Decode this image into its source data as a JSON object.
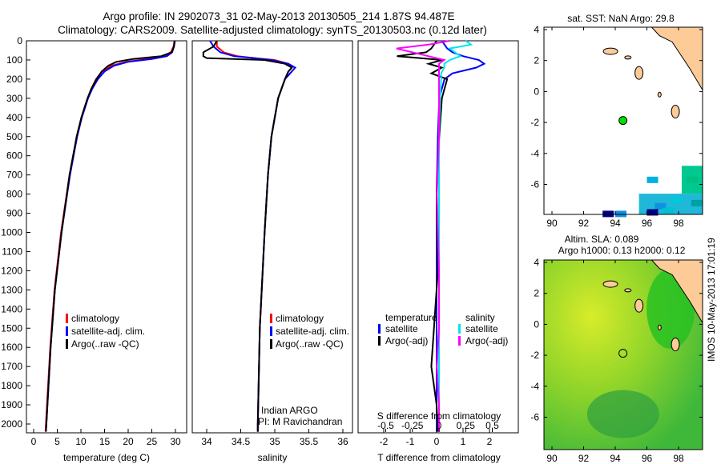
{
  "title_line1": "Argo profile: IN 2902073_31 02-May-2013 20130505_214 1.87S 94.487E",
  "title_line2": "Climatology: CARS2009. Satellite-adjusted climatology: synTS_20130503.nc (0.12d later)",
  "footer_stamp": "IMOS 10-May-2013 17:01:19",
  "colors": {
    "climatology": "#ff0000",
    "satellite": "#0000ff",
    "argo": "#000000",
    "sal_satellite": "#00e5ee",
    "sal_argo": "#ff00ff",
    "land": "#fccb98"
  },
  "chart_data": [
    {
      "type": "line",
      "xlabel": "temperature (deg C)",
      "xlim": [
        -2,
        31
      ],
      "ylim": [
        2050,
        0
      ],
      "xticks": [
        "0",
        "5",
        "10",
        "15",
        "20",
        "25",
        "30"
      ],
      "yticks": [
        "0",
        "100",
        "200",
        "300",
        "400",
        "500",
        "600",
        "700",
        "800",
        "900",
        "1000",
        "1100",
        "1200",
        "1300",
        "1400",
        "1500",
        "1600",
        "1700",
        "1800",
        "1900",
        "2000"
      ],
      "legend": [
        "climatology",
        "satellite-adj. clim.",
        "Argo(..raw -QC)"
      ],
      "depth": [
        0,
        30,
        60,
        80,
        95,
        110,
        130,
        160,
        200,
        250,
        300,
        400,
        500,
        700,
        1000,
        1300,
        1600,
        2000,
        2040
      ],
      "series": [
        {
          "name": "climatology",
          "values": [
            29.8,
            29.6,
            29.0,
            27.5,
            24,
            19.5,
            16.5,
            14.5,
            13.2,
            12.2,
            11.4,
            10.1,
            9.1,
            7.6,
            5.8,
            4.4,
            3.5,
            2.6,
            2.5
          ]
        },
        {
          "name": "satellite-adj. clim.",
          "values": [
            29.9,
            29.7,
            29.3,
            28.2,
            25,
            20,
            17,
            15,
            13.6,
            12.4,
            11.5,
            10.2,
            9.2,
            7.7,
            5.9,
            4.5,
            3.6,
            2.7,
            2.6
          ]
        },
        {
          "name": "Argo(..raw -QC)",
          "values": [
            29.8,
            29.7,
            29.2,
            27.0,
            21,
            17.5,
            15.8,
            14.4,
            13.3,
            12.2,
            11.4,
            10.1,
            9.1,
            7.6,
            5.9,
            4.5,
            3.6,
            2.7,
            2.6
          ]
        }
      ],
      "annotations": []
    },
    {
      "type": "line",
      "xlabel": "salinity",
      "xlim": [
        33.7,
        36.1
      ],
      "ylim": [
        2050,
        0
      ],
      "xticks": [
        "34",
        "34.5",
        "35",
        "35.5",
        "36"
      ],
      "legend": [
        "climatology",
        "satellite-adj. clim.",
        "Argo(..raw -QC)"
      ],
      "depth": [
        0,
        30,
        60,
        80,
        90,
        100,
        120,
        140,
        160,
        200,
        300,
        500,
        700,
        1000,
        1500,
        2000,
        2040
      ],
      "series": [
        {
          "name": "climatology",
          "values": [
            34.15,
            34.15,
            34.25,
            34.45,
            34.7,
            35.0,
            35.2,
            35.25,
            35.2,
            35.15,
            35.05,
            34.95,
            34.9,
            34.85,
            34.78,
            34.75,
            34.75
          ]
        },
        {
          "name": "satellite-adj. clim.",
          "values": [
            34.05,
            34.1,
            34.2,
            34.4,
            34.7,
            34.95,
            35.2,
            35.3,
            35.25,
            35.15,
            35.05,
            34.95,
            34.9,
            34.85,
            34.78,
            34.75,
            34.75
          ]
        },
        {
          "name": "Argo(..raw -QC)",
          "values": [
            34.15,
            34.1,
            33.95,
            33.95,
            34.0,
            34.85,
            35.15,
            35.25,
            35.2,
            35.15,
            35.05,
            34.95,
            34.9,
            34.85,
            34.78,
            34.75,
            34.75
          ]
        }
      ],
      "annotations": [
        "Indian ARGO",
        "PI: M Ravichandran"
      ]
    },
    {
      "type": "line",
      "xlabel": "T difference from climatology",
      "xlabel2": "S difference from climatology",
      "xlim": [
        -2.8,
        2.9
      ],
      "ylim": [
        2050,
        0
      ],
      "xticks": [
        "-2",
        "-1",
        "0",
        "1",
        "2"
      ],
      "xticks2": [
        "-0.5",
        "-0.25",
        "0",
        "0.25",
        "0.5"
      ],
      "legend_titles": [
        "temperature",
        "salinity"
      ],
      "legend": [
        "satellite",
        "Argo(-adj)",
        "satellite",
        "Argo(-adj)"
      ],
      "depth": [
        0,
        20,
        40,
        60,
        80,
        100,
        120,
        140,
        170,
        200,
        300,
        500,
        800,
        1200,
        1500,
        1700,
        1900,
        2040
      ],
      "series": [
        {
          "name": "T satellite",
          "values": [
            0.2,
            0.3,
            0.4,
            0.6,
            1.0,
            1.6,
            1.8,
            1.5,
            0.6,
            0.3,
            0.1,
            0.05,
            0.0,
            0.0,
            0.0,
            0.0,
            0.0,
            0.0
          ]
        },
        {
          "name": "T Argo(-adj)",
          "values": [
            0.0,
            -0.1,
            -0.2,
            -0.4,
            -1.5,
            0.2,
            -0.3,
            0.2,
            -0.2,
            0.4,
            0.2,
            0.1,
            0.0,
            0.05,
            -0.1,
            -0.2,
            0.0,
            0.05
          ]
        },
        {
          "name": "S satellite",
          "values": [
            0.25,
            0.3,
            0.1,
            0.15,
            0.2,
            0.1,
            0.05,
            0.05,
            0.02,
            0.02,
            0.01,
            0.0,
            0.0,
            0.0,
            0.0,
            0.0,
            0.0,
            0.0
          ]
        },
        {
          "name": "S Argo(-adj)",
          "values": [
            0.1,
            -0.1,
            -0.4,
            -0.25,
            -0.1,
            0.05,
            0.0,
            0.0,
            0.0,
            0.0,
            0.0,
            0.0,
            -0.02,
            0.0,
            0.0,
            -0.02,
            0.0,
            0.0
          ]
        }
      ]
    },
    {
      "type": "heatmap",
      "title": "sat. SST: NaN Argo: 29.8",
      "xticks": [
        "90",
        "92",
        "94",
        "96",
        "98"
      ],
      "yticks": [
        "4",
        "2",
        "0",
        "-2",
        "-4",
        "-6"
      ],
      "xlim": [
        89.4,
        99.6
      ],
      "ylim": [
        -7.9,
        4.1
      ],
      "argo_position": {
        "lon": 94.487,
        "lat": -1.87
      }
    },
    {
      "type": "heatmap",
      "title": "Altim. SLA: 0.089",
      "subtitle": "Argo h1000: 0.13 h2000: 0.12",
      "xticks": [
        "90",
        "92",
        "94",
        "96",
        "98"
      ],
      "yticks": [
        "4",
        "2",
        "0",
        "-2",
        "-4",
        "-6"
      ],
      "xlim": [
        89.4,
        99.6
      ],
      "ylim": [
        -7.9,
        4.1
      ],
      "argo_position": {
        "lon": 94.487,
        "lat": -1.87
      }
    }
  ]
}
